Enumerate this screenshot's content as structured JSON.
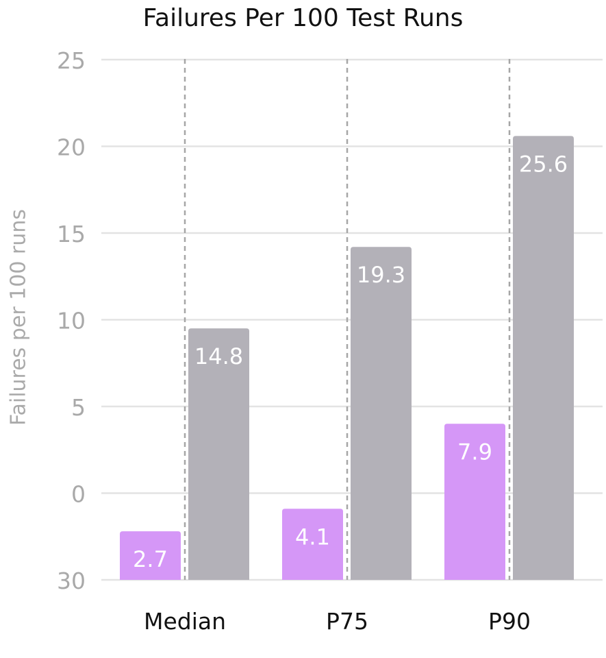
{
  "chart_data": {
    "type": "bar",
    "title": "Failures Per 100 Test Runs",
    "xlabel": "",
    "ylabel": "Failures per 100 runs",
    "categories": [
      "Median",
      "P75",
      "P90"
    ],
    "series": [
      {
        "values": [
          2.7,
          4.1,
          7.9
        ],
        "color": "#d597f7"
      },
      {
        "values": [
          14.8,
          19.3,
          25.6
        ],
        "color": "#b3b1b8"
      }
    ],
    "y_tick_labels": [
      "30",
      "0",
      "5",
      "10",
      "15",
      "20",
      "25"
    ],
    "bar_tops_on_axis": [
      [
        -2.2,
        9.5
      ],
      [
        -0.9,
        14.2
      ],
      [
        4.0,
        20.6
      ]
    ],
    "y_axis_min": -5,
    "y_axis_max": 25,
    "grid": true,
    "gridline_color": "#e3e3e3",
    "divider_color": "#a6a6a6",
    "label_color": "#ffffff"
  }
}
